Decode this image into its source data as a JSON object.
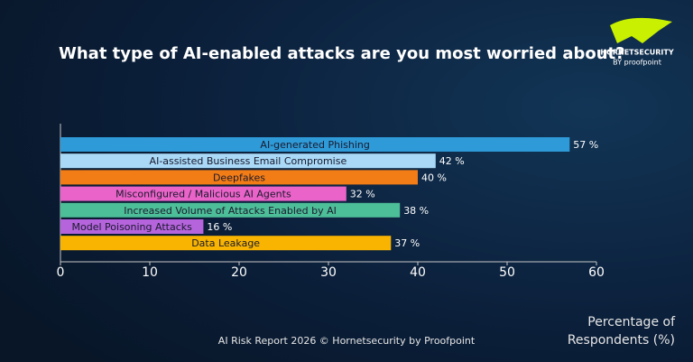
{
  "chart_data": {
    "type": "bar",
    "orientation": "horizontal",
    "title": "What type of AI-enabled attacks are you most worried about?",
    "categories": [
      "AI-generated Phishing",
      "AI-assisted Business Email Compromise",
      "Deepfakes",
      "Misconfigured / Malicious AI Agents",
      "Increased Volume of Attacks Enabled by AI",
      "Model Poisoning Attacks",
      "Data Leakage"
    ],
    "values": [
      57,
      42,
      40,
      32,
      38,
      16,
      37
    ],
    "value_labels": [
      "57 %",
      "42 %",
      "40 %",
      "32 %",
      "38 %",
      "16 %",
      "37 %"
    ],
    "colors": [
      "#2e9ad8",
      "#a9d9f6",
      "#f27c16",
      "#ea63c8",
      "#4dbf98",
      "#b564dc",
      "#f8b400"
    ],
    "xlim": [
      0,
      60
    ],
    "xticks": [
      0,
      10,
      20,
      30,
      40,
      50,
      60
    ],
    "xlabel": [
      "Percentage of",
      "Respondents (%)"
    ],
    "footer": "AI Risk Report 2026 © Hornetsecurity by Proofpoint",
    "logo": {
      "name": "HORNETSECURITY",
      "byline": "BY proofpoint"
    }
  }
}
